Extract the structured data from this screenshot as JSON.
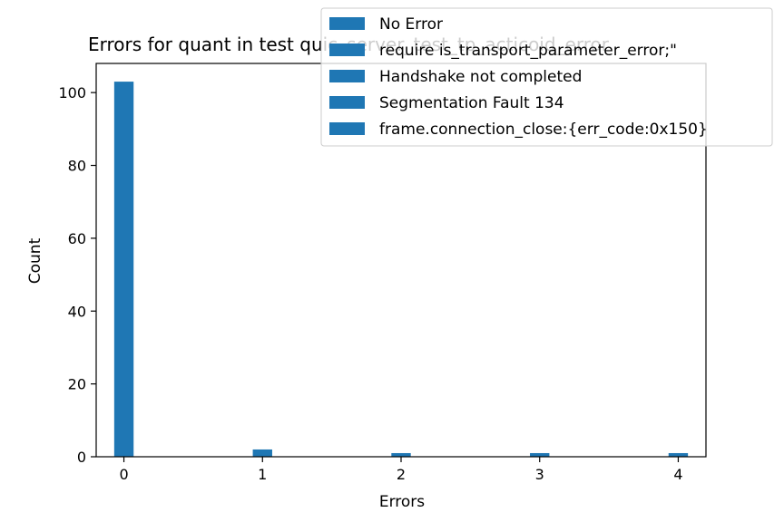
{
  "chart_data": {
    "type": "bar",
    "title": "Errors for quant in test quic_server_test_tp_acticoid_error",
    "xlabel": "Errors",
    "ylabel": "Count",
    "categories": [
      0,
      1,
      2,
      3,
      4
    ],
    "x_ticks": [
      "0",
      "1",
      "2",
      "3",
      "4"
    ],
    "y_ticks": [
      "0",
      "20",
      "40",
      "60",
      "80",
      "100"
    ],
    "y_tick_values": [
      0,
      20,
      40,
      60,
      80,
      100
    ],
    "values": [
      103,
      2,
      1,
      1,
      1
    ],
    "xlim": [
      -0.2,
      4.2
    ],
    "ylim": [
      0,
      108
    ],
    "grid": false,
    "legend_placement": "top-right",
    "legend": [
      "No Error",
      "require is_transport_parameter_error;\"",
      "Handshake not completed",
      "Segmentation Fault 134",
      "frame.connection_close:{err_code:0x150}"
    ],
    "bar_color": "#1f77b4"
  }
}
